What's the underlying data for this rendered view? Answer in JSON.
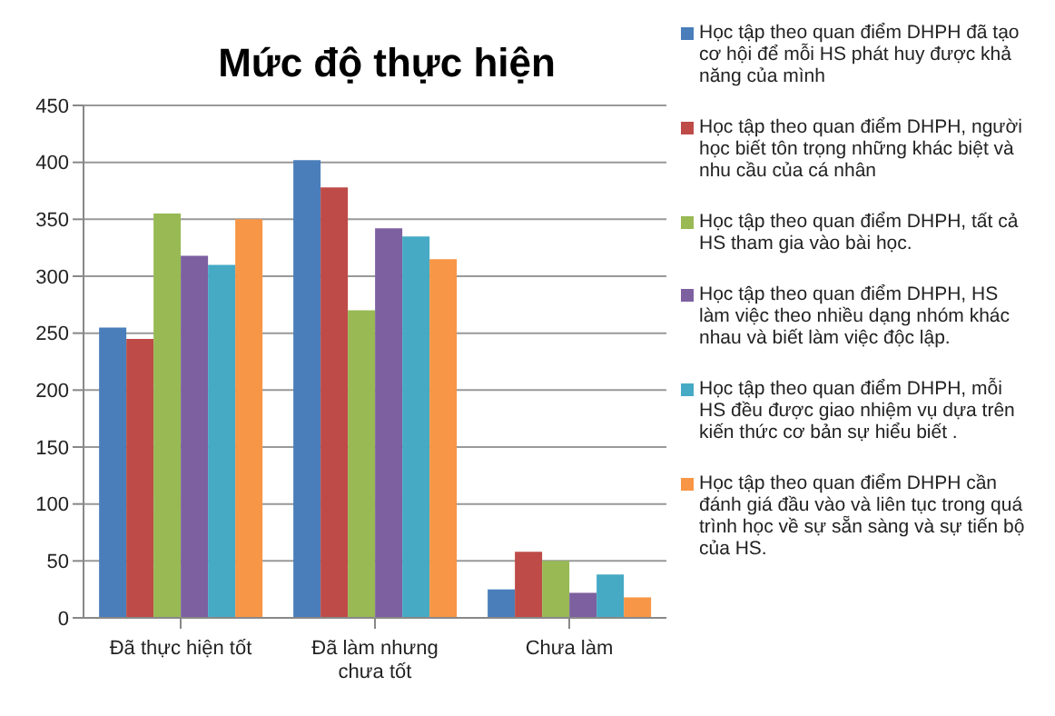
{
  "chart_data": {
    "type": "bar",
    "title": "Mức độ thực hiện",
    "categories": [
      "Đã thực hiện tốt",
      "Đã làm nhưng chưa tốt",
      "Chưa làm"
    ],
    "series": [
      {
        "name": "Học tập theo quan điểm DHPH đã tạo cơ hội để mỗi HS phát huy được khả năng của mình",
        "color": "#4a7ebb",
        "values": [
          255,
          402,
          25
        ]
      },
      {
        "name": "Học tập theo quan điểm DHPH, người học biết tôn trọng những khác biệt và nhu cầu của cá nhân",
        "color": "#be4b48",
        "values": [
          245,
          378,
          58
        ]
      },
      {
        "name": "Học tập theo quan điểm DHPH, tất cả HS tham gia vào bài học.",
        "color": "#98b954",
        "values": [
          355,
          270,
          50
        ]
      },
      {
        "name": "Học tập theo quan điểm DHPH, HS làm việc theo nhiều dạng nhóm khác nhau và biết làm việc độc lập.",
        "color": "#7d60a0",
        "values": [
          318,
          342,
          22
        ]
      },
      {
        "name": "Học tập theo quan điểm DHPH, mỗi HS đều được giao nhiệm vụ dựa trên kiến thức cơ bản sự hiểu biết .",
        "color": "#46aac5",
        "values": [
          310,
          335,
          38
        ]
      },
      {
        "name": "Học tập theo quan điểm DHPH cần đánh giá đầu vào và liên tục trong quá trình học về sự sẵn sàng và sự tiến bộ của HS.",
        "color": "#f79646",
        "values": [
          350,
          315,
          18
        ]
      }
    ],
    "ylim": [
      0,
      450
    ],
    "yticks": [
      0,
      50,
      100,
      150,
      200,
      250,
      300,
      350,
      400,
      450
    ],
    "grid": "y",
    "legend": "right"
  }
}
